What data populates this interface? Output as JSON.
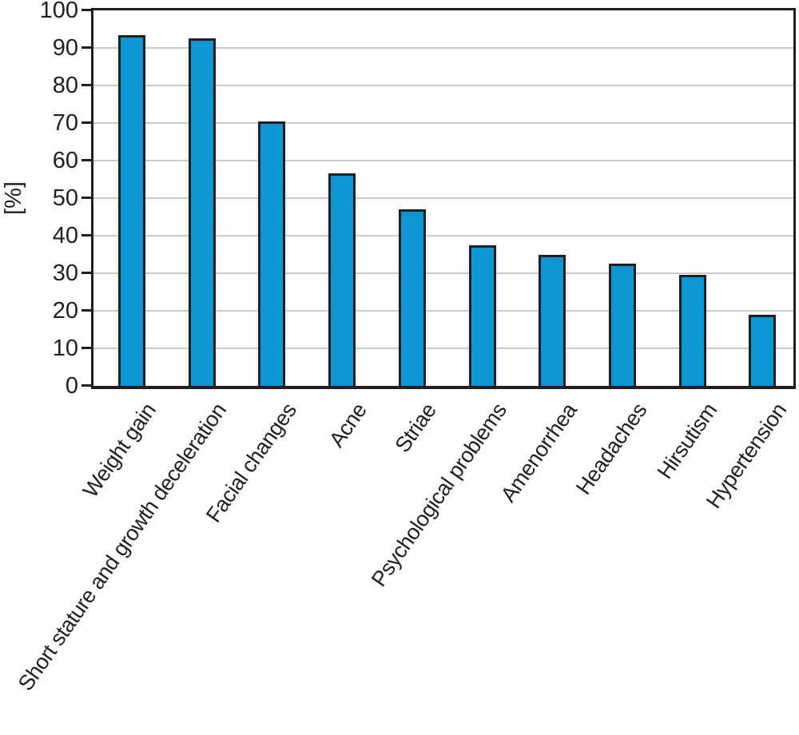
{
  "chart_data": {
    "type": "bar",
    "title": "",
    "ylabel": "[%]",
    "xlabel": "",
    "ylim": [
      0,
      100
    ],
    "yticks": [
      0,
      10,
      20,
      30,
      40,
      50,
      60,
      70,
      80,
      90,
      100
    ],
    "grid": true,
    "legend": "none",
    "categories": [
      "Weight gain",
      "Short stature and growth deceleration",
      "Facial changes",
      "Acne",
      "Striae",
      "Psychological problems",
      "Amenorrhea",
      "Headaches",
      "Hirsutism",
      "Hypertension"
    ],
    "values": [
      93.5,
      92.5,
      70.5,
      56.5,
      47,
      37.5,
      35,
      32.5,
      29.5,
      19
    ],
    "colors": {
      "bar_fill": "#0e96d4",
      "bar_outline": "#231f20",
      "axis": "#231f20",
      "gridline": "#c8c9ca",
      "text": "#231f20",
      "background": "#ffffff"
    }
  }
}
